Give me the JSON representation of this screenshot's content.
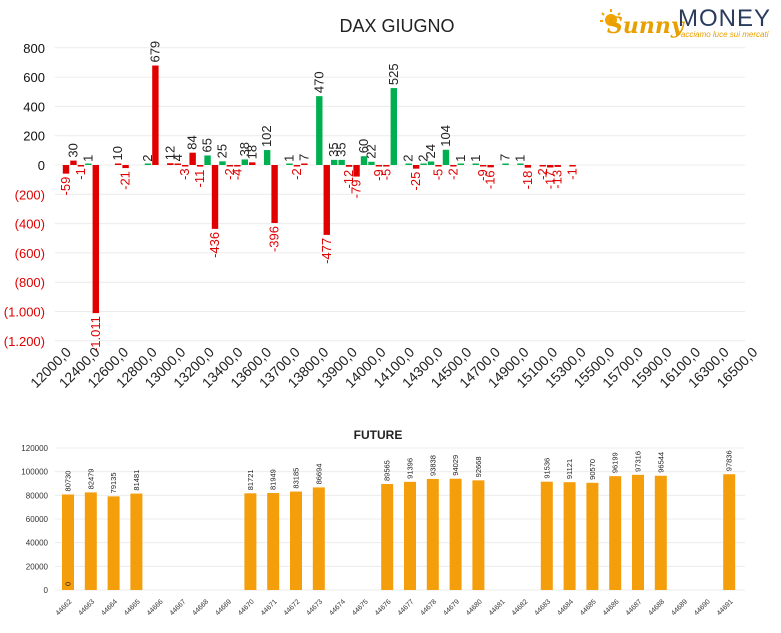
{
  "logo": {
    "brand_left": "Sunny",
    "brand_right": "MONEY",
    "tagline": "Facciamo luce sui mercati",
    "colors": {
      "sun": "#f4a300",
      "sunny": "#e8a000",
      "money": "#2a3b5c"
    }
  },
  "chart_data": [
    {
      "type": "bar",
      "title": "DAX GIUGNO",
      "xlabel": "",
      "ylabel": "",
      "ylim": [
        -1200,
        800
      ],
      "yticks": [
        800,
        600,
        400,
        200,
        0,
        -200,
        -400,
        -600,
        -800,
        -1000,
        -1200
      ],
      "ytick_labels": [
        "800",
        "600",
        "400",
        "200",
        "0",
        "(200)",
        "(400)",
        "(600)",
        "(800)",
        "(1.000)",
        "(1.200)"
      ],
      "grid": true,
      "colors": {
        "positive": "#00b050",
        "negative": "#e00000",
        "label_negative": "#e00000",
        "label_positive": "#222222"
      },
      "categories": [
        "12000,0",
        "12400,0",
        "12600,0",
        "12800,0",
        "13000,0",
        "13200,0",
        "13400,0",
        "13600,0",
        "13700,0",
        "13800,0",
        "13900,0",
        "14000,0",
        "14100,0",
        "14300,0",
        "14500,0",
        "14700,0",
        "14900,0",
        "15100,0",
        "15300,0",
        "15500,0",
        "15700,0",
        "15900,0",
        "16100,0",
        "16300,0",
        "16500,0"
      ],
      "series": [
        {
          "values": [
            -59,
            null,
            null,
            null,
            null,
            null,
            null,
            null,
            null,
            null,
            null,
            null,
            null,
            null,
            null,
            null,
            null,
            null,
            null,
            null,
            null,
            null,
            null,
            null,
            null
          ]
        }
      ],
      "bars": [
        {
          "slot": 0,
          "value": -59
        },
        {
          "slot": 1,
          "value": 30
        },
        {
          "slot": 2,
          "value": -1
        },
        {
          "slot": 3,
          "value": 1
        },
        {
          "slot": 4,
          "value": -1011
        },
        {
          "slot": 7,
          "value": 10
        },
        {
          "slot": 8,
          "value": -21
        },
        {
          "slot": 11,
          "value": 2
        },
        {
          "slot": 12,
          "value": 679
        },
        {
          "slot": 14,
          "value": 12
        },
        {
          "slot": 15,
          "value": 4
        },
        {
          "slot": 16,
          "value": -3
        },
        {
          "slot": 17,
          "value": 84
        },
        {
          "slot": 18,
          "value": -11
        },
        {
          "slot": 19,
          "value": 65
        },
        {
          "slot": 20,
          "value": -436
        },
        {
          "slot": 21,
          "value": 25
        },
        {
          "slot": 22,
          "value": -2
        },
        {
          "slot": 23,
          "value": -4
        },
        {
          "slot": 24,
          "value": 38
        },
        {
          "slot": 25,
          "value": 18
        },
        {
          "slot": 27,
          "value": 102
        },
        {
          "slot": 28,
          "value": -396
        },
        {
          "slot": 30,
          "value": 1
        },
        {
          "slot": 31,
          "value": -2
        },
        {
          "slot": 32,
          "value": 7
        },
        {
          "slot": 34,
          "value": 470
        },
        {
          "slot": 35,
          "value": -477
        },
        {
          "slot": 36,
          "value": 35
        },
        {
          "slot": 37,
          "value": 35
        },
        {
          "slot": 38,
          "value": -12
        },
        {
          "slot": 39,
          "value": -79
        },
        {
          "slot": 40,
          "value": 60
        },
        {
          "slot": 41,
          "value": 22
        },
        {
          "slot": 42,
          "value": -9
        },
        {
          "slot": 43,
          "value": -5
        },
        {
          "slot": 44,
          "value": 525
        },
        {
          "slot": 46,
          "value": 2
        },
        {
          "slot": 47,
          "value": -25
        },
        {
          "slot": 48,
          "value": 2
        },
        {
          "slot": 49,
          "value": 24
        },
        {
          "slot": 50,
          "value": -5
        },
        {
          "slot": 51,
          "value": 104
        },
        {
          "slot": 52,
          "value": -2
        },
        {
          "slot": 53,
          "value": 1
        },
        {
          "slot": 55,
          "value": 1
        },
        {
          "slot": 56,
          "value": -9
        },
        {
          "slot": 57,
          "value": -16
        },
        {
          "slot": 59,
          "value": 7
        },
        {
          "slot": 61,
          "value": 1
        },
        {
          "slot": 62,
          "value": -18
        },
        {
          "slot": 64,
          "value": -2
        },
        {
          "slot": 65,
          "value": -17
        },
        {
          "slot": 66,
          "value": -13
        },
        {
          "slot": 68,
          "value": -1
        }
      ]
    },
    {
      "type": "bar",
      "title": "FUTURE",
      "xlabel": "",
      "ylabel": "",
      "ylim": [
        0,
        120000
      ],
      "yticks": [
        0,
        20000,
        40000,
        60000,
        80000,
        100000,
        120000
      ],
      "color": "#f59e0b",
      "categories": [
        "44662",
        "44663",
        "44664",
        "44665",
        "44666",
        "44667",
        "44668",
        "44669",
        "44670",
        "44671",
        "44672",
        "44673",
        "44674",
        "44675",
        "44676",
        "44677",
        "44678",
        "44679",
        "44680",
        "44681",
        "44682",
        "44683",
        "44684",
        "44685",
        "44686",
        "44687",
        "44688",
        "44689",
        "44690",
        "44691"
      ],
      "values": [
        80730,
        82479,
        79135,
        81481,
        null,
        null,
        null,
        null,
        81721,
        81949,
        83185,
        86694,
        null,
        null,
        89565,
        91396,
        93838,
        94029,
        92668,
        null,
        null,
        91536,
        91121,
        90570,
        96199,
        97316,
        96544,
        null,
        null,
        97836
      ],
      "extra_labels": [
        {
          "index": 0,
          "text": "0"
        }
      ]
    }
  ]
}
